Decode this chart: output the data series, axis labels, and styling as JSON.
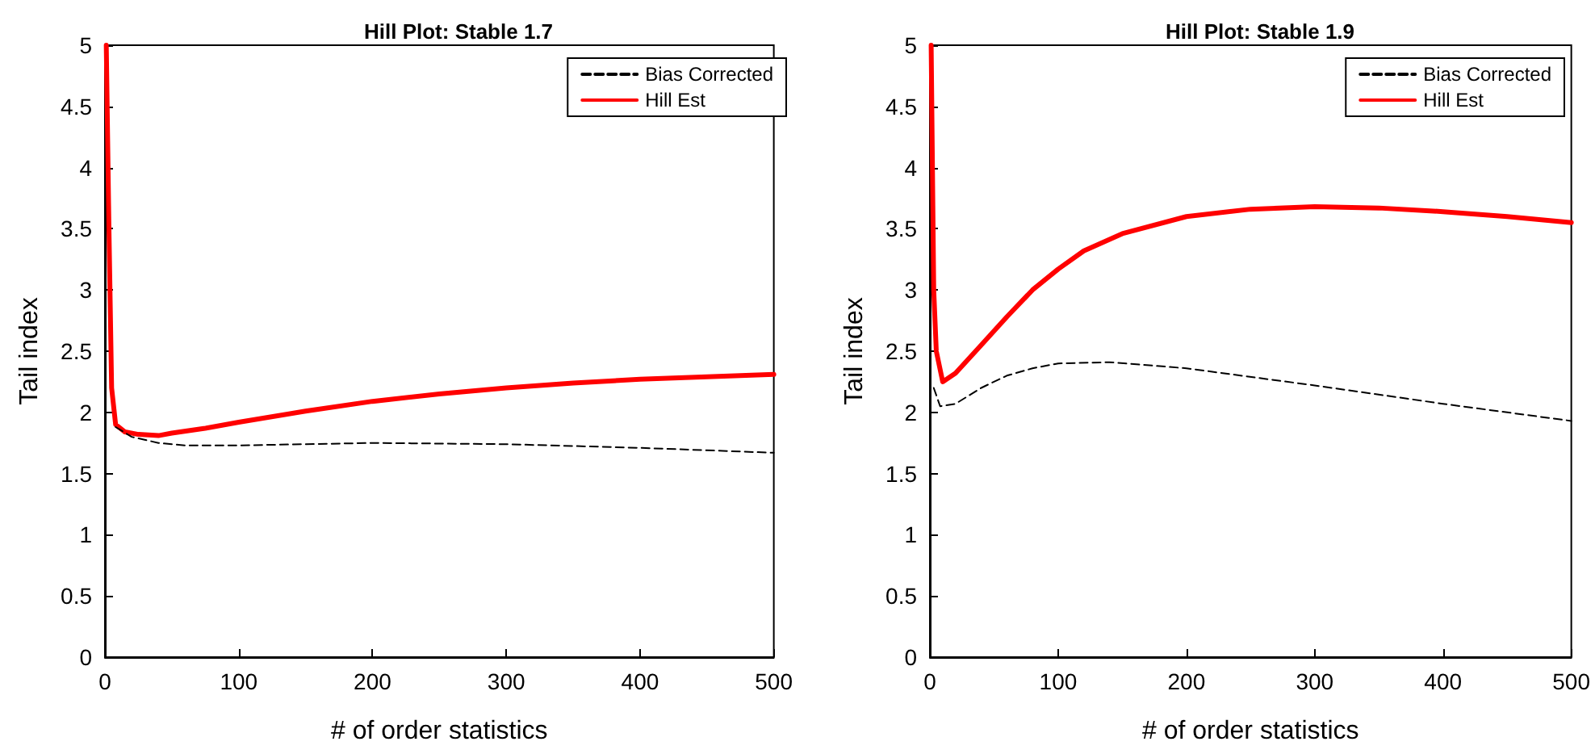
{
  "chart_data": [
    {
      "type": "line",
      "title": "Hill Plot: Stable 1.7",
      "xlabel": "# of order statistics",
      "ylabel": "Tail index",
      "xlim": [
        0,
        500
      ],
      "xticks": [
        0,
        100,
        200,
        300,
        400,
        500
      ],
      "ylim": [
        0,
        5
      ],
      "yticks": [
        0,
        0.5,
        1,
        1.5,
        2,
        2.5,
        3,
        3.5,
        4,
        4.5,
        5
      ],
      "grid": false,
      "legend": "top right",
      "marker": "none",
      "series": [
        {
          "name": "Bias Corrected",
          "color": "#000000",
          "line_style": "dashed",
          "x": [
            8,
            20,
            40,
            60,
            100,
            200,
            300,
            400,
            500
          ],
          "values": [
            1.88,
            1.8,
            1.75,
            1.73,
            1.73,
            1.75,
            1.74,
            1.71,
            1.67
          ]
        },
        {
          "name": "Hill Est",
          "color": "#ff0000",
          "line_style": "solid",
          "x": [
            1,
            3,
            5,
            8,
            15,
            25,
            40,
            50,
            75,
            100,
            150,
            200,
            250,
            300,
            350,
            400,
            450,
            500
          ],
          "values": [
            5,
            3.5,
            2.2,
            1.9,
            1.84,
            1.82,
            1.81,
            1.83,
            1.87,
            1.92,
            2.01,
            2.09,
            2.15,
            2.2,
            2.24,
            2.27,
            2.29,
            2.31
          ]
        }
      ]
    },
    {
      "type": "line",
      "title": "Hill Plot: Stable 1.9",
      "xlabel": "# of order statistics",
      "ylabel": "Tail index",
      "xlim": [
        0,
        500
      ],
      "xticks": [
        0,
        100,
        200,
        300,
        400,
        500
      ],
      "ylim": [
        0,
        5
      ],
      "yticks": [
        0,
        0.5,
        1,
        1.5,
        2,
        2.5,
        3,
        3.5,
        4,
        4.5,
        5
      ],
      "grid": false,
      "legend": "top right",
      "marker": "none",
      "series": [
        {
          "name": "Bias Corrected",
          "color": "#000000",
          "line_style": "dashed",
          "x": [
            3,
            8,
            20,
            40,
            60,
            80,
            100,
            140,
            200,
            300,
            400,
            500
          ],
          "values": [
            2.2,
            2.05,
            2.07,
            2.2,
            2.3,
            2.36,
            2.4,
            2.41,
            2.36,
            2.22,
            2.07,
            1.93
          ]
        },
        {
          "name": "Hill Est",
          "color": "#ff0000",
          "line_style": "solid",
          "x": [
            1,
            3,
            5,
            10,
            20,
            40,
            60,
            80,
            100,
            120,
            150,
            200,
            250,
            300,
            350,
            400,
            450,
            500
          ],
          "values": [
            5,
            3,
            2.5,
            2.25,
            2.32,
            2.55,
            2.78,
            3.0,
            3.17,
            3.32,
            3.46,
            3.6,
            3.66,
            3.68,
            3.67,
            3.64,
            3.6,
            3.55
          ]
        }
      ]
    }
  ]
}
